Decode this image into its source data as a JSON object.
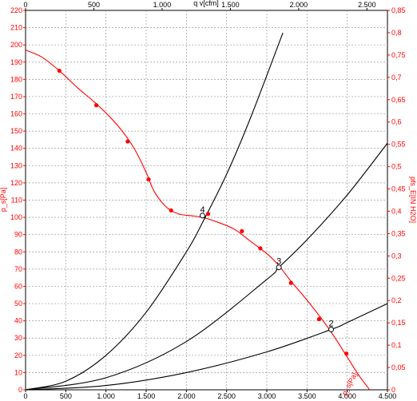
{
  "chart_data": {
    "type": "line",
    "title": "",
    "top_axis": {
      "label": "q v[cfm]",
      "range": [
        0,
        2650
      ],
      "ticks": [
        0,
        500,
        1000,
        1500,
        2000,
        2500
      ],
      "tick_labels": [
        "0",
        "500",
        "1.000",
        "1.500",
        "2.000",
        "2.500"
      ]
    },
    "x_axis": {
      "label": "",
      "range": [
        0,
        4500
      ],
      "ticks": [
        0,
        500,
        1000,
        1500,
        2000,
        2500,
        3000,
        3500,
        4000,
        4500
      ],
      "tick_labels": [
        "0",
        "500",
        "1.000",
        "1.500",
        "2.000",
        "2.500",
        "3.000",
        "3.500",
        "4.000",
        "4.500"
      ]
    },
    "y_axis": {
      "label": "p_s[Pa]",
      "range": [
        0,
        220
      ],
      "ticks": [
        0,
        10,
        20,
        30,
        40,
        50,
        60,
        70,
        80,
        90,
        100,
        110,
        120,
        130,
        140,
        150,
        160,
        170,
        180,
        190,
        200,
        210,
        220
      ],
      "tick_labels": [
        "0",
        "10",
        "20",
        "30",
        "40",
        "50",
        "60",
        "70",
        "80",
        "90",
        "100",
        "110",
        "120",
        "130",
        "140",
        "150",
        "160",
        "170",
        "180",
        "190",
        "200",
        "210",
        "220"
      ]
    },
    "y2_axis": {
      "label": "pfs_E[IN H2O]",
      "range": [
        0,
        0.85
      ],
      "ticks": [
        0,
        0.05,
        0.1,
        0.15,
        0.2,
        0.25,
        0.3,
        0.35,
        0.4,
        0.45,
        0.5,
        0.55,
        0.6,
        0.65,
        0.7,
        0.75,
        0.8,
        0.85
      ],
      "tick_labels": [
        "0",
        "0,05",
        "0,1",
        "0,15",
        "0,2",
        "0,25",
        "0,3",
        "0,35",
        "0,4",
        "0,45",
        "0,5",
        "0,55",
        "0,6",
        "0,65",
        "0,7",
        "0,75",
        "0,8",
        "0,85"
      ]
    },
    "grid": true,
    "series": [
      {
        "color": "#ff0000",
        "x": [
          0,
          200,
          420,
          650,
          900,
          1150,
          1350,
          1500,
          1600,
          1750,
          1900,
          2050,
          2200,
          2400,
          2600,
          2800,
          3000,
          3150,
          3300,
          3500,
          3700,
          3850,
          4000,
          4150,
          4280
        ],
        "y": [
          197,
          193,
          185,
          175,
          165,
          153,
          140,
          126,
          115,
          106,
          102,
          101,
          100,
          97,
          93,
          86,
          79,
          72,
          63,
          52,
          40,
          30,
          19,
          8,
          0
        ],
        "markers_x": [
          420,
          880,
          1270,
          1530,
          1810,
          2270,
          2690,
          2920,
          3300,
          3650,
          3990
        ],
        "markers_y": [
          185,
          165,
          144,
          122,
          104,
          102,
          92,
          82,
          62,
          41,
          21
        ]
      },
      {
        "color": "#000000",
        "x": [
          0,
          500,
          1000,
          1500,
          2000,
          2200,
          2500,
          2800,
          3200
        ],
        "y": [
          0,
          5,
          20,
          45,
          80,
          97,
          125,
          158,
          207
        ]
      },
      {
        "color": "#000000",
        "x": [
          0,
          1000,
          2000,
          3000,
          3150,
          3500,
          4000,
          4500
        ],
        "y": [
          0,
          7,
          28,
          64,
          71,
          87,
          113,
          143
        ]
      },
      {
        "color": "#000000",
        "x": [
          0,
          1000,
          2000,
          3000,
          3800,
          4000,
          4500
        ],
        "y": [
          0,
          2.5,
          10,
          22,
          35,
          39,
          50
        ]
      }
    ],
    "operating_points": [
      {
        "label": "4",
        "x": 2200,
        "y": 101
      },
      {
        "label": "3",
        "x": 3150,
        "y": 71
      },
      {
        "label": "2",
        "x": 3800,
        "y": 35
      }
    ],
    "annotations": [
      "p_s[Pa]"
    ]
  }
}
